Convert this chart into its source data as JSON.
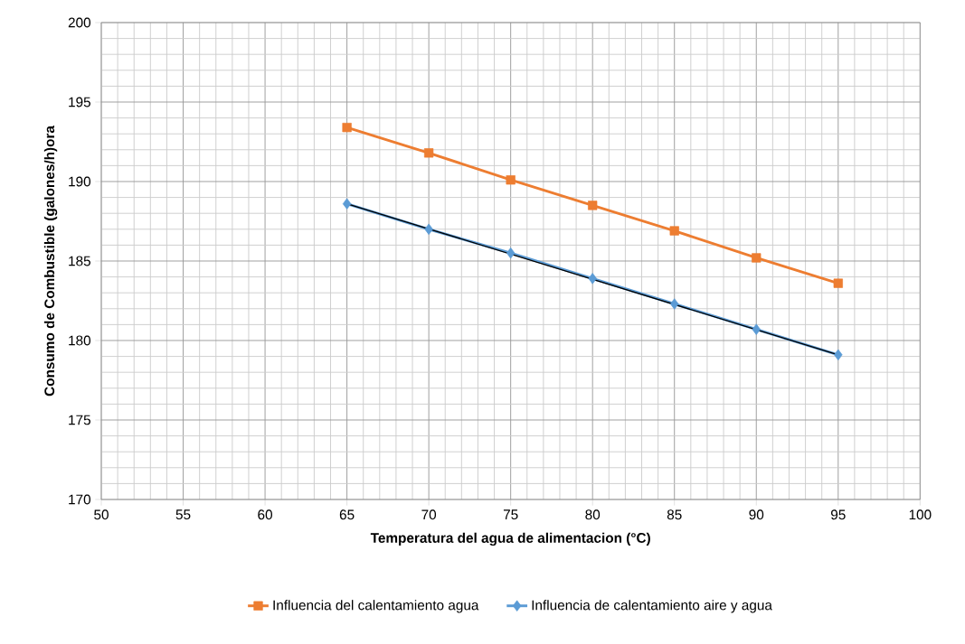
{
  "chart_data": {
    "type": "line",
    "xlabel": "Temperatura del agua de alimentacion (°C)",
    "ylabel": "Consumo de Combustible (galones/h)ora",
    "x": [
      65,
      70,
      75,
      80,
      85,
      90,
      95
    ],
    "series": [
      {
        "name": "Influencia del calentamiento agua",
        "color": "#ed7d31",
        "marker": "square",
        "values": [
          193.4,
          191.8,
          190.1,
          188.5,
          186.9,
          185.2,
          183.6
        ]
      },
      {
        "name": "Influencia de calentamiento aire y agua",
        "color": "#5b9bd5",
        "marker": "diamond",
        "values": [
          188.6,
          187.0,
          185.5,
          183.9,
          182.3,
          180.7,
          179.1
        ]
      },
      {
        "type": "line",
        "color": "#000000",
        "marker": "none",
        "x": [
          65,
          95
        ],
        "values": [
          188.6,
          179.1
        ]
      }
    ],
    "xlim": [
      50,
      100
    ],
    "xticks": [
      50,
      55,
      60,
      65,
      70,
      75,
      80,
      85,
      90,
      95,
      100
    ],
    "ylim": [
      170,
      200
    ],
    "yticks": [
      170,
      175,
      180,
      185,
      190,
      195,
      200
    ],
    "grid": true,
    "legend": "bottom"
  }
}
